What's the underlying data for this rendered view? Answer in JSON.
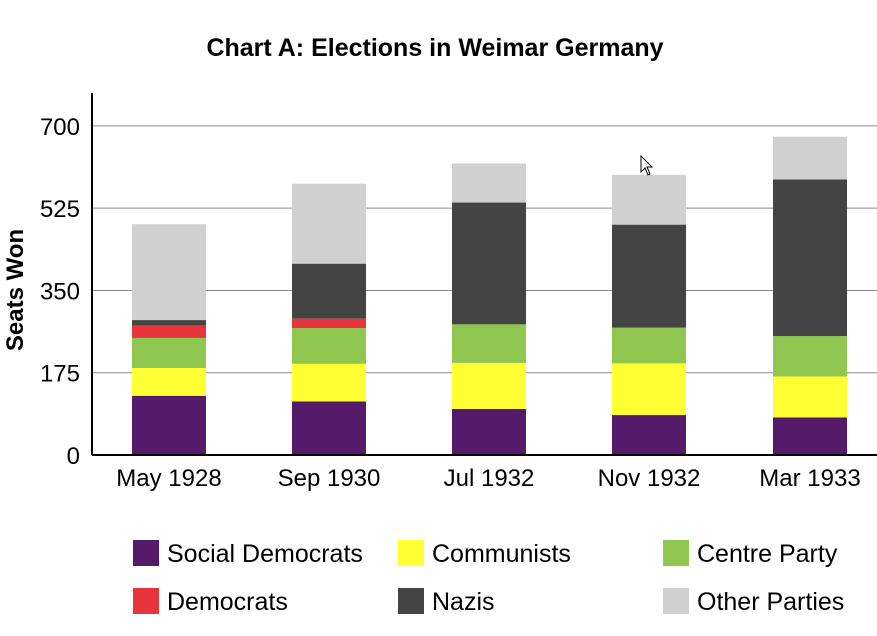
{
  "chart_data": {
    "type": "bar",
    "stacked": true,
    "title": "Chart A: Elections in Weimar Germany",
    "xlabel": "",
    "ylabel": "Seats Won",
    "ylim": [
      0,
      770
    ],
    "yticks": [
      0,
      175,
      350,
      525,
      700
    ],
    "grid": true,
    "legend_position": "bottom",
    "categories": [
      "May 1928",
      "Sep 1930",
      "Jul 1932",
      "Nov 1932",
      "Mar 1933"
    ],
    "series": [
      {
        "name": "Social Democrats",
        "color": "#561a6b",
        "values": [
          126,
          114,
          98,
          85,
          80
        ]
      },
      {
        "name": "Communists",
        "color": "#ffff33",
        "values": [
          59,
          80,
          98,
          110,
          87
        ]
      },
      {
        "name": "Centre Party",
        "color": "#8ec64f",
        "values": [
          64,
          76,
          82,
          76,
          86
        ]
      },
      {
        "name": "Democrats",
        "color": "#e8353d",
        "values": [
          26,
          20,
          0,
          0,
          0
        ]
      },
      {
        "name": "Nazis",
        "color": "#444444",
        "values": [
          12,
          117,
          259,
          219,
          333
        ]
      },
      {
        "name": "Other Parties",
        "color": "#d0d0d0",
        "values": [
          204,
          170,
          83,
          106,
          91
        ]
      }
    ]
  }
}
